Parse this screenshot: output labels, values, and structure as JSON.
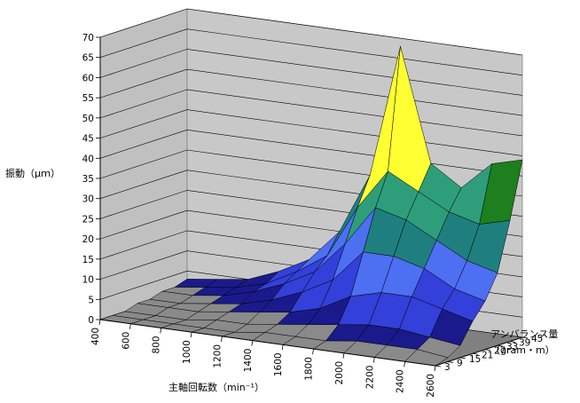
{
  "chart_data": {
    "type": "surface",
    "zlabel": "振動（μｍ）",
    "xlabel": "主軸回転数（min⁻¹）",
    "ylabel_line1": "アンバランス量",
    "ylabel_line2": "（gram・m）",
    "z_ticks": [
      "0",
      "5",
      "10",
      "15",
      "20",
      "25",
      "30",
      "35",
      "40",
      "45",
      "50",
      "55",
      "60",
      "65",
      "70"
    ],
    "zlim": [
      0,
      70
    ],
    "x_ticks": [
      "400",
      "600",
      "800",
      "1000",
      "1200",
      "1400",
      "1600",
      "1800",
      "2000",
      "2200",
      "2400",
      "2600"
    ],
    "y_ticks": [
      "3",
      "9",
      "15",
      "21",
      "27",
      "33",
      "39",
      "45"
    ],
    "grid": true,
    "band_colors": [
      "#1a1a8c",
      "#3340d9",
      "#4d6ff2",
      "#1f7f7f",
      "#2e9e7a",
      "#1d7f1d",
      "#ffff33",
      "#ff9922",
      "#e85c0c",
      "#ff0000"
    ],
    "x_rpm": [
      400,
      600,
      800,
      1000,
      1200,
      1400,
      1600,
      1800,
      2000,
      2200,
      2400,
      2600
    ],
    "y_gram_m": [
      3,
      9,
      15,
      21,
      27,
      33,
      39,
      45
    ],
    "z_um": [
      [
        0,
        0,
        0,
        0,
        0,
        0,
        0,
        0,
        0,
        0,
        0,
        0
      ],
      [
        0,
        0,
        0,
        0,
        0,
        1,
        1,
        1,
        2,
        2,
        2,
        1
      ],
      [
        0,
        0,
        0,
        1,
        1,
        2,
        3,
        4,
        5,
        5,
        4,
        3
      ],
      [
        1,
        1,
        1,
        2,
        3,
        4,
        6,
        10,
        12,
        12,
        10,
        8
      ],
      [
        1,
        1,
        2,
        3,
        5,
        8,
        12,
        20,
        20,
        18,
        14,
        12
      ],
      [
        2,
        2,
        3,
        5,
        8,
        12,
        20,
        30,
        28,
        24,
        20,
        18
      ],
      [
        2,
        3,
        4,
        6,
        10,
        15,
        28,
        38,
        34,
        30,
        28,
        30
      ],
      [
        3,
        4,
        5,
        8,
        12,
        20,
        35,
        68,
        40,
        35,
        42,
        44
      ]
    ]
  }
}
